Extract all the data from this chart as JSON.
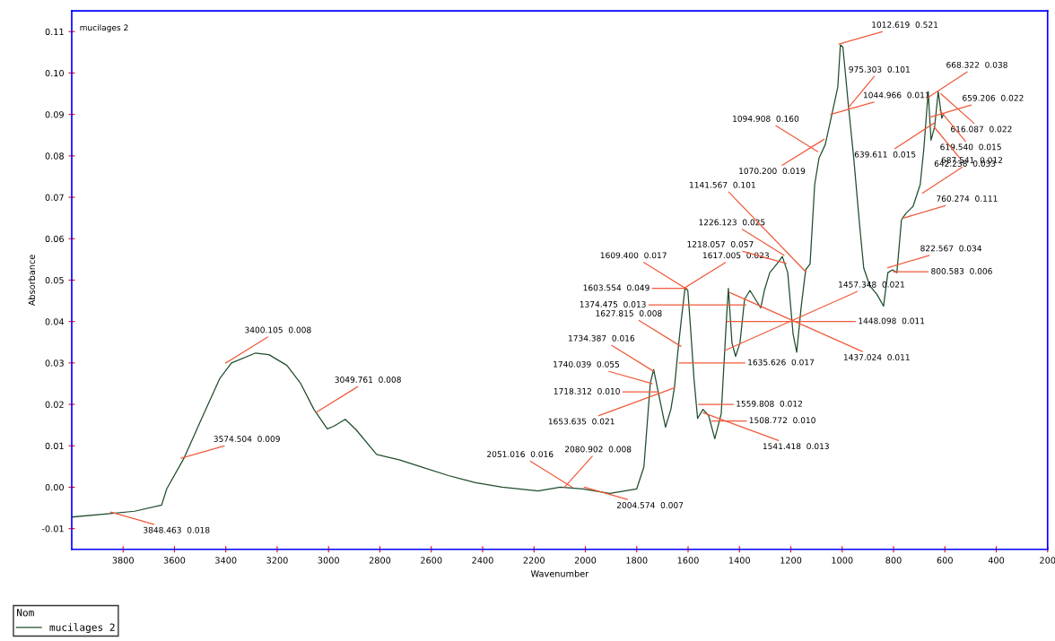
{
  "chart_data": {
    "type": "line",
    "xlabel": "Wavenumber",
    "ylabel": "Absorbance",
    "legend_title": "Nom",
    "legend": "bottom left",
    "grid": false,
    "marker": "none",
    "line_style": "solid",
    "xlim": [
      4000,
      200
    ],
    "xticks": [
      3800,
      3600,
      3400,
      3200,
      3000,
      2800,
      2600,
      2400,
      2200,
      2000,
      1800,
      1600,
      1400,
      1200,
      1000,
      800,
      600,
      400,
      200
    ],
    "ylim": [
      -0.015,
      0.115
    ],
    "yticks": [
      -0.01,
      {
        "value": 0,
        "label": "0.00"
      },
      0.01,
      0.02,
      0.03,
      0.04,
      0.05,
      0.06,
      0.07,
      0.08,
      0.09,
      {
        "value": 0.1,
        "label": "0.10"
      },
      0.11
    ],
    "series": [
      {
        "name": "mucilages 2",
        "color": "#1e4d2b",
        "x": [
          4000,
          3860,
          3755,
          3650,
          3630,
          3563,
          3494,
          3424,
          3378,
          3284,
          3232,
          3162,
          3110,
          3057,
          3005,
          2980,
          2935,
          2893,
          2813,
          2725,
          2638,
          2533,
          2428,
          2324,
          2184,
          2097,
          2010,
          1905,
          1800,
          1772,
          1747,
          1734,
          1713,
          1688,
          1667,
          1653,
          1640,
          1625,
          1612,
          1601,
          1591,
          1577,
          1563,
          1542,
          1520,
          1496,
          1471,
          1450,
          1443,
          1429,
          1415,
          1398,
          1380,
          1359,
          1338,
          1317,
          1303,
          1282,
          1254,
          1233,
          1212,
          1191,
          1177,
          1160,
          1142,
          1125,
          1107,
          1090,
          1066,
          1038,
          1017,
          1007,
          997,
          976,
          955,
          934,
          916,
          892,
          864,
          839,
          822,
          804,
          787,
          769,
          752,
          724,
          696,
          682,
          665,
          654,
          640,
          626,
          612,
          605
        ],
        "values": [
          -0.0072,
          -0.0064,
          -0.0058,
          -0.0043,
          -0.0004,
          0.007,
          0.0166,
          0.0262,
          0.03,
          0.0324,
          0.032,
          0.0294,
          0.0252,
          0.0188,
          0.0141,
          0.0147,
          0.0164,
          0.0139,
          0.0079,
          0.0066,
          0.0049,
          0.0028,
          0.0011,
          0.0,
          -0.0009,
          0.0,
          -0.0004,
          -0.0015,
          -0.0004,
          0.0049,
          0.0252,
          0.0284,
          0.022,
          0.0145,
          0.0188,
          0.0241,
          0.0326,
          0.0412,
          0.048,
          0.0475,
          0.039,
          0.0262,
          0.0166,
          0.0188,
          0.0173,
          0.0117,
          0.0177,
          0.0412,
          0.048,
          0.0348,
          0.0316,
          0.0348,
          0.0454,
          0.0475,
          0.0454,
          0.0433,
          0.0475,
          0.0518,
          0.0539,
          0.0557,
          0.0518,
          0.0369,
          0.0326,
          0.0433,
          0.0525,
          0.0539,
          0.0731,
          0.0795,
          0.0827,
          0.0906,
          0.0966,
          0.1068,
          0.1062,
          0.0923,
          0.0795,
          0.0646,
          0.0529,
          0.0486,
          0.0465,
          0.0437,
          0.0518,
          0.0525,
          0.0518,
          0.0646,
          0.0661,
          0.0678,
          0.0731,
          0.0817,
          0.0955,
          0.0838,
          0.087,
          0.0955,
          0.0891,
          0.0902
        ]
      }
    ],
    "annotations": [
      {
        "text": "3848.463  0.018",
        "x": 3848.463,
        "y": -0.006
      },
      {
        "text": "3574.504  0.009",
        "x": 3574.504,
        "y": 0.007
      },
      {
        "text": "3400.105  0.008",
        "x": 3400.105,
        "y": 0.03
      },
      {
        "text": "3049.761  0.008",
        "x": 3049.761,
        "y": 0.018
      },
      {
        "text": "2080.902  0.008",
        "x": 2080.902,
        "y": 0.0
      },
      {
        "text": "2051.016  0.016",
        "x": 2051.016,
        "y": 0.0
      },
      {
        "text": "2004.574  0.007",
        "x": 2004.574,
        "y": 0.0
      },
      {
        "text": "1734.387  0.016",
        "x": 1734.387,
        "y": 0.028
      },
      {
        "text": "1740.039  0.055",
        "x": 1740.039,
        "y": 0.025
      },
      {
        "text": "1718.312  0.010",
        "x": 1718.312,
        "y": 0.023
      },
      {
        "text": "1617.005  0.023",
        "x": 1617.005,
        "y": 0.048
      },
      {
        "text": "1609.400  0.017",
        "x": 1609.4,
        "y": 0.048
      },
      {
        "text": "1603.554  0.049",
        "x": 1603.554,
        "y": 0.048
      },
      {
        "text": "1627.815  0.008",
        "x": 1627.815,
        "y": 0.034
      },
      {
        "text": "1635.626  0.017",
        "x": 1635.626,
        "y": 0.03
      },
      {
        "text": "1653.635  0.021",
        "x": 1653.635,
        "y": 0.024
      },
      {
        "text": "1559.808  0.012",
        "x": 1559.808,
        "y": 0.02
      },
      {
        "text": "1508.772  0.010",
        "x": 1508.772,
        "y": 0.016
      },
      {
        "text": "1541.418  0.013",
        "x": 1541.418,
        "y": 0.018
      },
      {
        "text": "1437.024  0.011",
        "x": 1437.024,
        "y": 0.047
      },
      {
        "text": "1374.475  0.013",
        "x": 1374.475,
        "y": 0.044
      },
      {
        "text": "1448.098  0.011",
        "x": 1448.098,
        "y": 0.04
      },
      {
        "text": "1457.348  0.021",
        "x": 1457.348,
        "y": 0.033
      },
      {
        "text": "1226.123  0.025",
        "x": 1226.123,
        "y": 0.056
      },
      {
        "text": "1218.057  0.057",
        "x": 1218.057,
        "y": 0.054
      },
      {
        "text": "1141.567  0.101",
        "x": 1141.567,
        "y": 0.052
      },
      {
        "text": "1094.908  0.160",
        "x": 1094.908,
        "y": 0.081
      },
      {
        "text": "1070.200  0.019",
        "x": 1070.2,
        "y": 0.084
      },
      {
        "text": "1044.966  0.011",
        "x": 1044.966,
        "y": 0.09
      },
      {
        "text": "1012.619  0.521",
        "x": 1012.619,
        "y": 0.107
      },
      {
        "text": "975.303  0.101",
        "x": 975.303,
        "y": 0.0917
      },
      {
        "text": "822.567  0.034",
        "x": 822.567,
        "y": 0.053
      },
      {
        "text": "800.583  0.006",
        "x": 800.583,
        "y": 0.052
      },
      {
        "text": "760.274  0.111",
        "x": 760.274,
        "y": 0.065
      },
      {
        "text": "687.541  0.012",
        "x": 687.541,
        "y": 0.071
      },
      {
        "text": "659.206  0.022",
        "x": 659.206,
        "y": 0.0893
      },
      {
        "text": "668.322  0.038",
        "x": 668.322,
        "y": 0.094
      },
      {
        "text": "616.087  0.022",
        "x": 616.087,
        "y": 0.095
      },
      {
        "text": "619.540  0.015",
        "x": 619.54,
        "y": 0.091
      },
      {
        "text": "639.611  0.015",
        "x": 639.611,
        "y": 0.088
      },
      {
        "text": "642.238  0.033",
        "x": 642.238,
        "y": 0.087
      }
    ]
  }
}
